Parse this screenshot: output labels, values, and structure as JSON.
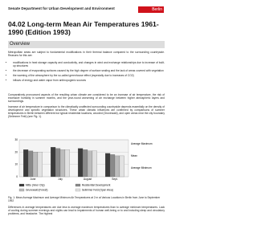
{
  "header": {
    "org": "Senate Department for Urban Development and Environment",
    "logo": "Berlin"
  },
  "title": "04.02 Long-term Mean Air Temperatures 1961-1990 (Edition 1993)",
  "section": "Overview",
  "paragraphs": [
    "Metropolitan areas are subject to fundamental modifications in their thermal balance compared to the surrounding countryside. Reasons for this are:",
    "Comparatively pronounced aspects of the resulting urban climate are considered to be an increase of air temperature, the risk of excessive humidity in summer months, and the year-round worsening of air exchange between higher atmospheric layers and surroundings.",
    "Increase of air temperature in comparison to the climatically unaffected surrounding countryside depends essentially on the density of development and specific vegetation structures. These urban climatic influences are confirmed by comparisons of summer temperatures in Berlin between different but typical residential locations, wooded (Grunewald), and open areas near the city boundary (Selimmer Feld) (see Fig. 1).",
    "Differences in average temperatures are due less to average maximum temperatures than to average minimum temperatures. Lack of cooling during summer evenings and nights can lead to impairments of human well-being or to and including sleep and circulatory problems, and headache. The highest"
  ],
  "bullets": [
    "modifications in heat storage capacity and conductivity, and changes in wind and exchange relationships due to increase of built-up structures",
    "the decrease of evaporating surfaces caused by the high degree of surface sealing and the lack of areas covered with vegetation",
    "the warming of the atmosphere by the so-called greenhouse effect (especially due to increases of CO2)",
    "inflows of energy and water vapor from anthropogenic sources"
  ],
  "figure": {
    "type": "bar",
    "categories": [
      "June",
      "July",
      "August",
      "Sept."
    ],
    "series": [
      {
        "name": "Mitte (Inner City)",
        "color": "#3b3b3b",
        "values": [
          22,
          24,
          23,
          19
        ]
      },
      {
        "name": "Residential Development",
        "color": "#8a8a8a",
        "values": [
          21,
          23,
          22,
          18
        ]
      },
      {
        "name": "Grunewald (Forest)",
        "color": "#bdbdbd",
        "values": [
          20,
          22,
          21,
          17
        ]
      },
      {
        "name": "Selimmer Feld (Open Area)",
        "color": "#e2e2e2",
        "values": [
          20,
          22,
          21,
          17
        ]
      }
    ],
    "ylim": [
      0,
      30
    ],
    "yticks": [
      0,
      10,
      20,
      30
    ],
    "side_labels": [
      "Average Maximum",
      "Mean",
      "Average Minimum"
    ]
  },
  "caption": "Fig. 1: Mean Average Maximum and Average Minimum Air Temperatures at 2 m at Various Locations in Berlin from June to September 1992"
}
